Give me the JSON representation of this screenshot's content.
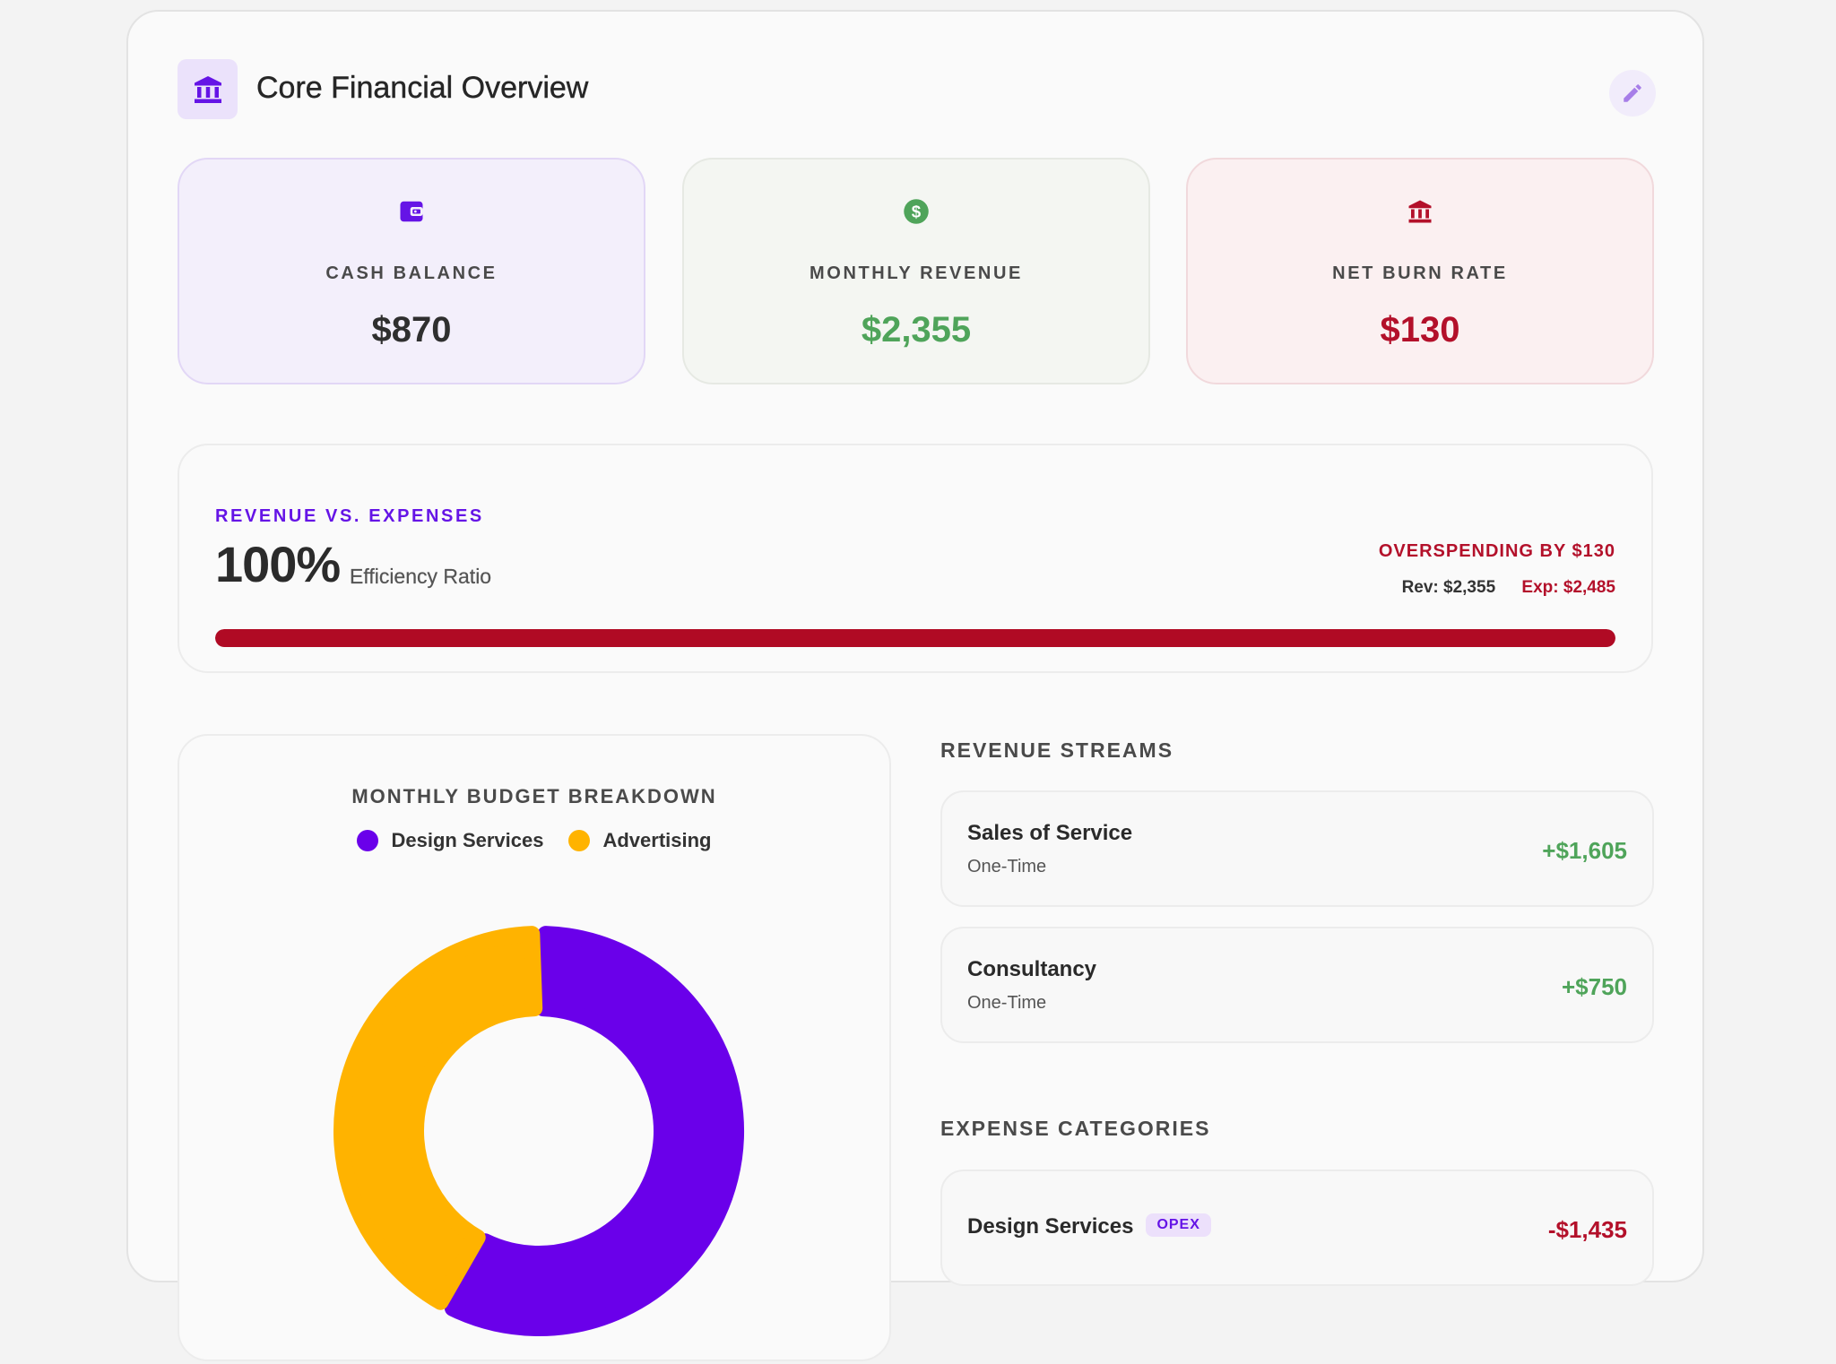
{
  "header": {
    "title": "Core Financial Overview",
    "icon": "bank-icon",
    "edit_icon": "pencil-icon"
  },
  "stats": [
    {
      "label": "CASH BALANCE",
      "value": "$870",
      "icon": "wallet-icon",
      "color": "#6514e6"
    },
    {
      "label": "MONTHLY REVENUE",
      "value": "$2,355",
      "icon": "dollar-circle-icon",
      "color": "#4fa45a"
    },
    {
      "label": "NET BURN RATE",
      "value": "$130",
      "icon": "bank-icon",
      "color": "#b3102a"
    }
  ],
  "efficiency": {
    "label": "REVENUE VS. EXPENSES",
    "percent": "100%",
    "subtitle": "Efficiency Ratio",
    "status": "OVERSPENDING BY $130",
    "revenue": "Rev: $2,355",
    "expenses": "Exp: $2,485",
    "bar_fill_fraction": 1.0,
    "bar_color": "#b00a24"
  },
  "budget": {
    "title": "MONTHLY BUDGET BREAKDOWN",
    "legend": [
      {
        "name": "Design Services",
        "color": "#6a00ea"
      },
      {
        "name": "Advertising",
        "color": "#ffb300"
      }
    ]
  },
  "chart_data": {
    "type": "pie",
    "title": "MONTHLY BUDGET BREAKDOWN",
    "categories": [
      "Design Services",
      "Advertising"
    ],
    "values": [
      1435,
      1050
    ],
    "colors": [
      "#6a00ea",
      "#ffb300"
    ]
  },
  "revenue_streams": {
    "heading": "REVENUE STREAMS",
    "items": [
      {
        "name": "Sales of Service",
        "type": "One-Time",
        "amount": "+$1,605"
      },
      {
        "name": "Consultancy",
        "type": "One-Time",
        "amount": "+$750"
      }
    ]
  },
  "expense_categories": {
    "heading": "EXPENSE CATEGORIES",
    "items": [
      {
        "name": "Design Services",
        "badge": "OPEX",
        "amount": "-$1,435"
      }
    ]
  }
}
